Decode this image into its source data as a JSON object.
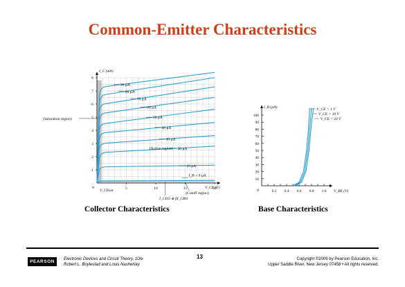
{
  "title": "Common-Emitter Characteristics",
  "captions": {
    "collector": "Collector Characteristics",
    "base": "Base Characteristics"
  },
  "footer": {
    "publisher": "PEARSON",
    "book_line1": "Electronic Devices and Circuit Theory, 10/e",
    "book_line2": "Robert L. Boylestad and Louis Nashelsky",
    "page_number": "13",
    "copyright_line1": "Copyright ©2009 by Pearson Education, Inc.",
    "copyright_line2": "Upper Saddle River, New Jersey 07458 • All rights reserved."
  },
  "colors": {
    "title": "#c8411a",
    "curve": "#2a9fd0",
    "grid": "#c9c9c9",
    "saturation_shade": "#b3b3b3",
    "cutoff_shade": "#c9c9c9"
  },
  "chart_data": [
    {
      "type": "line",
      "name": "collector",
      "ylabel": "I_C (mA)",
      "xlabel": "V_CE (V)",
      "xlim": [
        0,
        20
      ],
      "ylim": [
        0,
        8
      ],
      "x_ticks": [
        "5",
        "10",
        "15",
        "20"
      ],
      "y_ticks": [
        "1",
        "2",
        "3",
        "4",
        "5",
        "6",
        "7",
        "8"
      ],
      "origin_label": "0",
      "vcesat_label": "V_CEsat",
      "series": [
        {
          "name": "I_B = 0 µA",
          "values": [
            [
              0,
              0
            ],
            [
              0.4,
              0.15
            ],
            [
              20,
              0.2
            ]
          ]
        },
        {
          "name": "10 µA",
          "values": [
            [
              0,
              0
            ],
            [
              0.4,
              1.0
            ],
            [
              1,
              1.2
            ],
            [
              20,
              1.35
            ]
          ]
        },
        {
          "name": "20 µA",
          "values": [
            [
              0,
              0
            ],
            [
              0.4,
              1.8
            ],
            [
              1,
              2.3
            ],
            [
              20,
              2.8
            ]
          ]
        },
        {
          "name": "30 µA",
          "values": [
            [
              0,
              0
            ],
            [
              0.4,
              2.6
            ],
            [
              1,
              3.0
            ],
            [
              20,
              3.6
            ]
          ]
        },
        {
          "name": "40 µA",
          "values": [
            [
              0,
              0
            ],
            [
              0.4,
              3.3
            ],
            [
              1,
              3.8
            ],
            [
              20,
              4.6
            ]
          ]
        },
        {
          "name": "50 µA",
          "values": [
            [
              0,
              0
            ],
            [
              0.4,
              4.0
            ],
            [
              1,
              4.5
            ],
            [
              20,
              5.6
            ]
          ]
        },
        {
          "name": "60 µA",
          "values": [
            [
              0,
              0
            ],
            [
              0.4,
              4.7
            ],
            [
              1,
              5.3
            ],
            [
              20,
              6.5
            ]
          ]
        },
        {
          "name": "70 µA",
          "values": [
            [
              0,
              0
            ],
            [
              0.4,
              5.4
            ],
            [
              1,
              6.0
            ],
            [
              20,
              7.3
            ]
          ]
        },
        {
          "name": "80 µA",
          "values": [
            [
              0,
              0
            ],
            [
              0.4,
              6.0
            ],
            [
              1,
              6.7
            ],
            [
              20,
              8.0
            ]
          ]
        },
        {
          "name": "90 µA",
          "values": [
            [
              0,
              0
            ],
            [
              0.4,
              6.6
            ],
            [
              1,
              7.3
            ],
            [
              20,
              8.4
            ]
          ]
        }
      ],
      "annotations": {
        "saturation": "(Saturation region)",
        "active": "(Active region)",
        "cutoff": "(Cutoff region)",
        "iceo": "I_CEO ≅ βI_CBO"
      }
    },
    {
      "type": "line",
      "name": "base",
      "ylabel": "I_B (µA)",
      "xlabel": "V_BE (V)",
      "xlim": [
        0,
        1.0
      ],
      "ylim": [
        0,
        100
      ],
      "x_ticks": [
        "0.2",
        "0.4",
        "0.6",
        "0.8",
        "1.0"
      ],
      "y_ticks": [
        "10",
        "20",
        "30",
        "40",
        "50",
        "60",
        "70",
        "80",
        "90",
        "100"
      ],
      "origin_label": "0",
      "series": [
        {
          "name": "V_CE = 1 V",
          "values": [
            [
              0.5,
              0
            ],
            [
              0.6,
              5
            ],
            [
              0.67,
              20
            ],
            [
              0.72,
              50
            ],
            [
              0.75,
              80
            ],
            [
              0.77,
              110
            ]
          ]
        },
        {
          "name": "V_CE = 10 V",
          "values": [
            [
              0.52,
              0
            ],
            [
              0.62,
              5
            ],
            [
              0.69,
              20
            ],
            [
              0.74,
              50
            ],
            [
              0.77,
              80
            ],
            [
              0.8,
              110
            ]
          ]
        },
        {
          "name": "V_CE = 20 V",
          "values": [
            [
              0.54,
              0
            ],
            [
              0.64,
              5
            ],
            [
              0.71,
              20
            ],
            [
              0.76,
              50
            ],
            [
              0.79,
              80
            ],
            [
              0.83,
              110
            ]
          ]
        }
      ]
    }
  ]
}
